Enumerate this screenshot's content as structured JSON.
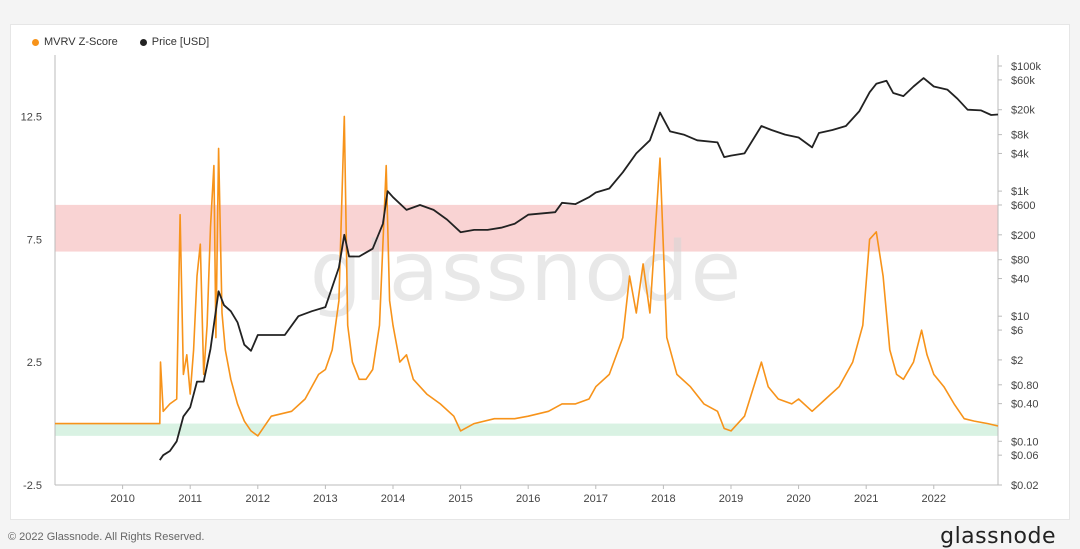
{
  "legend": [
    {
      "label": "MVRV Z-Score",
      "color": "#f7931a"
    },
    {
      "label": "Price [USD]",
      "color": "#222222"
    }
  ],
  "footer": "© 2022 Glassnode. All Rights Reserved.",
  "brand": "glassnode",
  "watermark": "glassnode",
  "chart_data": {
    "type": "line",
    "title": "",
    "xlabel": "",
    "ylabel": "",
    "xlim": [
      2009.0,
      2022.95
    ],
    "x_ticks": [
      "2010",
      "2011",
      "2012",
      "2013",
      "2014",
      "2015",
      "2016",
      "2017",
      "2018",
      "2019",
      "2020",
      "2021",
      "2022"
    ],
    "left_axis": {
      "ylim": [
        -2.5,
        15.0
      ],
      "ticks": [
        -2.5,
        2.5,
        7.5,
        12.5
      ],
      "tick_labels": [
        "-2.5",
        "2.5",
        "7.5",
        "12.5"
      ]
    },
    "right_axis": {
      "scale": "log",
      "ylim": [
        0.02,
        150000
      ],
      "ticks": [
        0.02,
        0.06,
        0.1,
        0.4,
        0.8,
        2,
        6,
        10,
        40,
        80,
        200,
        600,
        1000,
        4000,
        8000,
        20000,
        60000,
        100000
      ],
      "tick_labels": [
        "$0.02",
        "$0.06",
        "$0.10",
        "$0.40",
        "$0.80",
        "$2",
        "$6",
        "$10",
        "$40",
        "$80",
        "$200",
        "$600",
        "$1k",
        "$4k",
        "$8k",
        "$20k",
        "$60k",
        "$100k"
      ]
    },
    "bands": [
      {
        "axis": "left",
        "from": 7.0,
        "to": 8.9,
        "color": "#f9d3d3"
      },
      {
        "axis": "left",
        "from": -0.5,
        "to": 0.0,
        "color": "#d9f2e3"
      }
    ],
    "series": [
      {
        "name": "MVRV Z-Score",
        "axis": "left",
        "color": "#f7931a",
        "points": [
          [
            2009.0,
            0.0
          ],
          [
            2010.55,
            0.0
          ],
          [
            2010.56,
            2.5
          ],
          [
            2010.6,
            0.5
          ],
          [
            2010.7,
            0.8
          ],
          [
            2010.8,
            1.0
          ],
          [
            2010.85,
            8.5
          ],
          [
            2010.9,
            2.0
          ],
          [
            2010.95,
            2.8
          ],
          [
            2011.0,
            1.2
          ],
          [
            2011.05,
            3.0
          ],
          [
            2011.1,
            6.0
          ],
          [
            2011.15,
            7.3
          ],
          [
            2011.2,
            2.0
          ],
          [
            2011.25,
            4.0
          ],
          [
            2011.3,
            8.0
          ],
          [
            2011.35,
            10.5
          ],
          [
            2011.38,
            3.5
          ],
          [
            2011.42,
            11.2
          ],
          [
            2011.47,
            4.5
          ],
          [
            2011.52,
            3.0
          ],
          [
            2011.6,
            1.8
          ],
          [
            2011.7,
            0.8
          ],
          [
            2011.8,
            0.1
          ],
          [
            2011.9,
            -0.3
          ],
          [
            2012.0,
            -0.5
          ],
          [
            2012.2,
            0.3
          ],
          [
            2012.5,
            0.5
          ],
          [
            2012.7,
            1.0
          ],
          [
            2012.9,
            2.0
          ],
          [
            2013.0,
            2.2
          ],
          [
            2013.1,
            3.0
          ],
          [
            2013.2,
            5.0
          ],
          [
            2013.28,
            12.5
          ],
          [
            2013.33,
            4.0
          ],
          [
            2013.4,
            2.5
          ],
          [
            2013.5,
            1.8
          ],
          [
            2013.6,
            1.8
          ],
          [
            2013.7,
            2.2
          ],
          [
            2013.8,
            4.0
          ],
          [
            2013.9,
            10.5
          ],
          [
            2013.95,
            5.0
          ],
          [
            2014.0,
            4.0
          ],
          [
            2014.1,
            2.5
          ],
          [
            2014.2,
            2.8
          ],
          [
            2014.3,
            1.8
          ],
          [
            2014.5,
            1.2
          ],
          [
            2014.7,
            0.8
          ],
          [
            2014.9,
            0.3
          ],
          [
            2015.0,
            -0.3
          ],
          [
            2015.2,
            0.0
          ],
          [
            2015.5,
            0.2
          ],
          [
            2015.8,
            0.2
          ],
          [
            2016.0,
            0.3
          ],
          [
            2016.3,
            0.5
          ],
          [
            2016.5,
            0.8
          ],
          [
            2016.7,
            0.8
          ],
          [
            2016.9,
            1.0
          ],
          [
            2017.0,
            1.5
          ],
          [
            2017.2,
            2.0
          ],
          [
            2017.4,
            3.5
          ],
          [
            2017.5,
            6.0
          ],
          [
            2017.6,
            4.5
          ],
          [
            2017.7,
            6.5
          ],
          [
            2017.8,
            4.5
          ],
          [
            2017.95,
            10.8
          ],
          [
            2018.05,
            3.5
          ],
          [
            2018.2,
            2.0
          ],
          [
            2018.4,
            1.5
          ],
          [
            2018.6,
            0.8
          ],
          [
            2018.8,
            0.5
          ],
          [
            2018.9,
            -0.2
          ],
          [
            2019.0,
            -0.3
          ],
          [
            2019.2,
            0.3
          ],
          [
            2019.45,
            2.5
          ],
          [
            2019.55,
            1.5
          ],
          [
            2019.7,
            1.0
          ],
          [
            2019.9,
            0.8
          ],
          [
            2020.0,
            1.0
          ],
          [
            2020.2,
            0.5
          ],
          [
            2020.4,
            1.0
          ],
          [
            2020.6,
            1.5
          ],
          [
            2020.8,
            2.5
          ],
          [
            2020.95,
            4.0
          ],
          [
            2021.05,
            7.5
          ],
          [
            2021.15,
            7.8
          ],
          [
            2021.25,
            6.0
          ],
          [
            2021.35,
            3.0
          ],
          [
            2021.45,
            2.0
          ],
          [
            2021.55,
            1.8
          ],
          [
            2021.7,
            2.5
          ],
          [
            2021.82,
            3.8
          ],
          [
            2021.9,
            2.8
          ],
          [
            2022.0,
            2.0
          ],
          [
            2022.15,
            1.5
          ],
          [
            2022.3,
            0.8
          ],
          [
            2022.45,
            0.2
          ],
          [
            2022.6,
            0.1
          ],
          [
            2022.8,
            0.0
          ],
          [
            2022.95,
            -0.1
          ]
        ]
      },
      {
        "name": "Price [USD]",
        "axis": "right",
        "color": "#222222",
        "points": [
          [
            2010.55,
            0.05
          ],
          [
            2010.6,
            0.06
          ],
          [
            2010.7,
            0.07
          ],
          [
            2010.8,
            0.1
          ],
          [
            2010.9,
            0.25
          ],
          [
            2011.0,
            0.35
          ],
          [
            2011.1,
            0.9
          ],
          [
            2011.2,
            0.9
          ],
          [
            2011.3,
            3.0
          ],
          [
            2011.42,
            25
          ],
          [
            2011.5,
            15
          ],
          [
            2011.6,
            12
          ],
          [
            2011.7,
            8
          ],
          [
            2011.8,
            3.5
          ],
          [
            2011.9,
            2.8
          ],
          [
            2012.0,
            5.0
          ],
          [
            2012.2,
            5.0
          ],
          [
            2012.4,
            5.0
          ],
          [
            2012.6,
            10
          ],
          [
            2012.8,
            12
          ],
          [
            2013.0,
            14
          ],
          [
            2013.2,
            60
          ],
          [
            2013.28,
            200
          ],
          [
            2013.35,
            90
          ],
          [
            2013.5,
            90
          ],
          [
            2013.7,
            120
          ],
          [
            2013.85,
            300
          ],
          [
            2013.92,
            1000
          ],
          [
            2014.0,
            800
          ],
          [
            2014.2,
            500
          ],
          [
            2014.4,
            600
          ],
          [
            2014.6,
            500
          ],
          [
            2014.8,
            350
          ],
          [
            2015.0,
            220
          ],
          [
            2015.2,
            240
          ],
          [
            2015.4,
            240
          ],
          [
            2015.6,
            260
          ],
          [
            2015.8,
            300
          ],
          [
            2016.0,
            420
          ],
          [
            2016.4,
            460
          ],
          [
            2016.5,
            650
          ],
          [
            2016.7,
            620
          ],
          [
            2016.9,
            800
          ],
          [
            2017.0,
            950
          ],
          [
            2017.2,
            1100
          ],
          [
            2017.4,
            2000
          ],
          [
            2017.6,
            4000
          ],
          [
            2017.8,
            6500
          ],
          [
            2017.95,
            18000
          ],
          [
            2018.1,
            9000
          ],
          [
            2018.3,
            8000
          ],
          [
            2018.5,
            6500
          ],
          [
            2018.8,
            6000
          ],
          [
            2018.9,
            3500
          ],
          [
            2019.0,
            3700
          ],
          [
            2019.2,
            4000
          ],
          [
            2019.45,
            11000
          ],
          [
            2019.6,
            9500
          ],
          [
            2019.8,
            8000
          ],
          [
            2020.0,
            7200
          ],
          [
            2020.2,
            5000
          ],
          [
            2020.3,
            8500
          ],
          [
            2020.5,
            9500
          ],
          [
            2020.7,
            11000
          ],
          [
            2020.9,
            19000
          ],
          [
            2021.05,
            38000
          ],
          [
            2021.15,
            52000
          ],
          [
            2021.3,
            58000
          ],
          [
            2021.4,
            37000
          ],
          [
            2021.55,
            33000
          ],
          [
            2021.7,
            47000
          ],
          [
            2021.85,
            64000
          ],
          [
            2022.0,
            47000
          ],
          [
            2022.2,
            42000
          ],
          [
            2022.35,
            30000
          ],
          [
            2022.5,
            20000
          ],
          [
            2022.7,
            19500
          ],
          [
            2022.85,
            16500
          ],
          [
            2022.95,
            16800
          ]
        ]
      }
    ]
  }
}
